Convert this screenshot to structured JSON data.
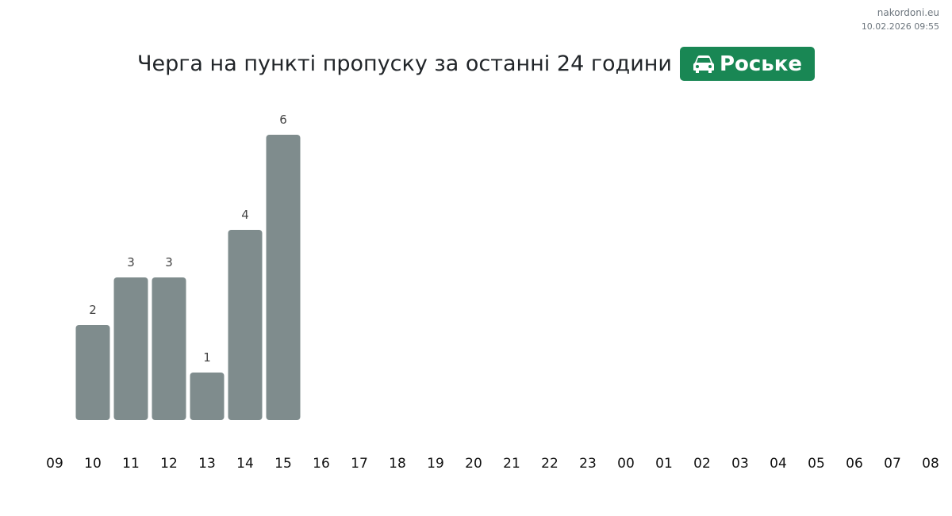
{
  "site": "nakordoni.eu",
  "timestamp": "10.02.2026 09:55",
  "checkpoint": "Роське",
  "chart_data": {
    "type": "bar",
    "title": "Черга на пункті пропуску за останні 24 години",
    "categories": [
      "09",
      "10",
      "11",
      "12",
      "13",
      "14",
      "15",
      "16",
      "17",
      "18",
      "19",
      "20",
      "21",
      "22",
      "23",
      "00",
      "01",
      "02",
      "03",
      "04",
      "05",
      "06",
      "07",
      "08"
    ],
    "values": [
      null,
      2,
      3,
      3,
      1,
      4,
      6,
      null,
      null,
      null,
      null,
      null,
      null,
      null,
      null,
      null,
      null,
      null,
      null,
      null,
      null,
      null,
      null,
      null
    ],
    "color": "#7f8c8d"
  }
}
